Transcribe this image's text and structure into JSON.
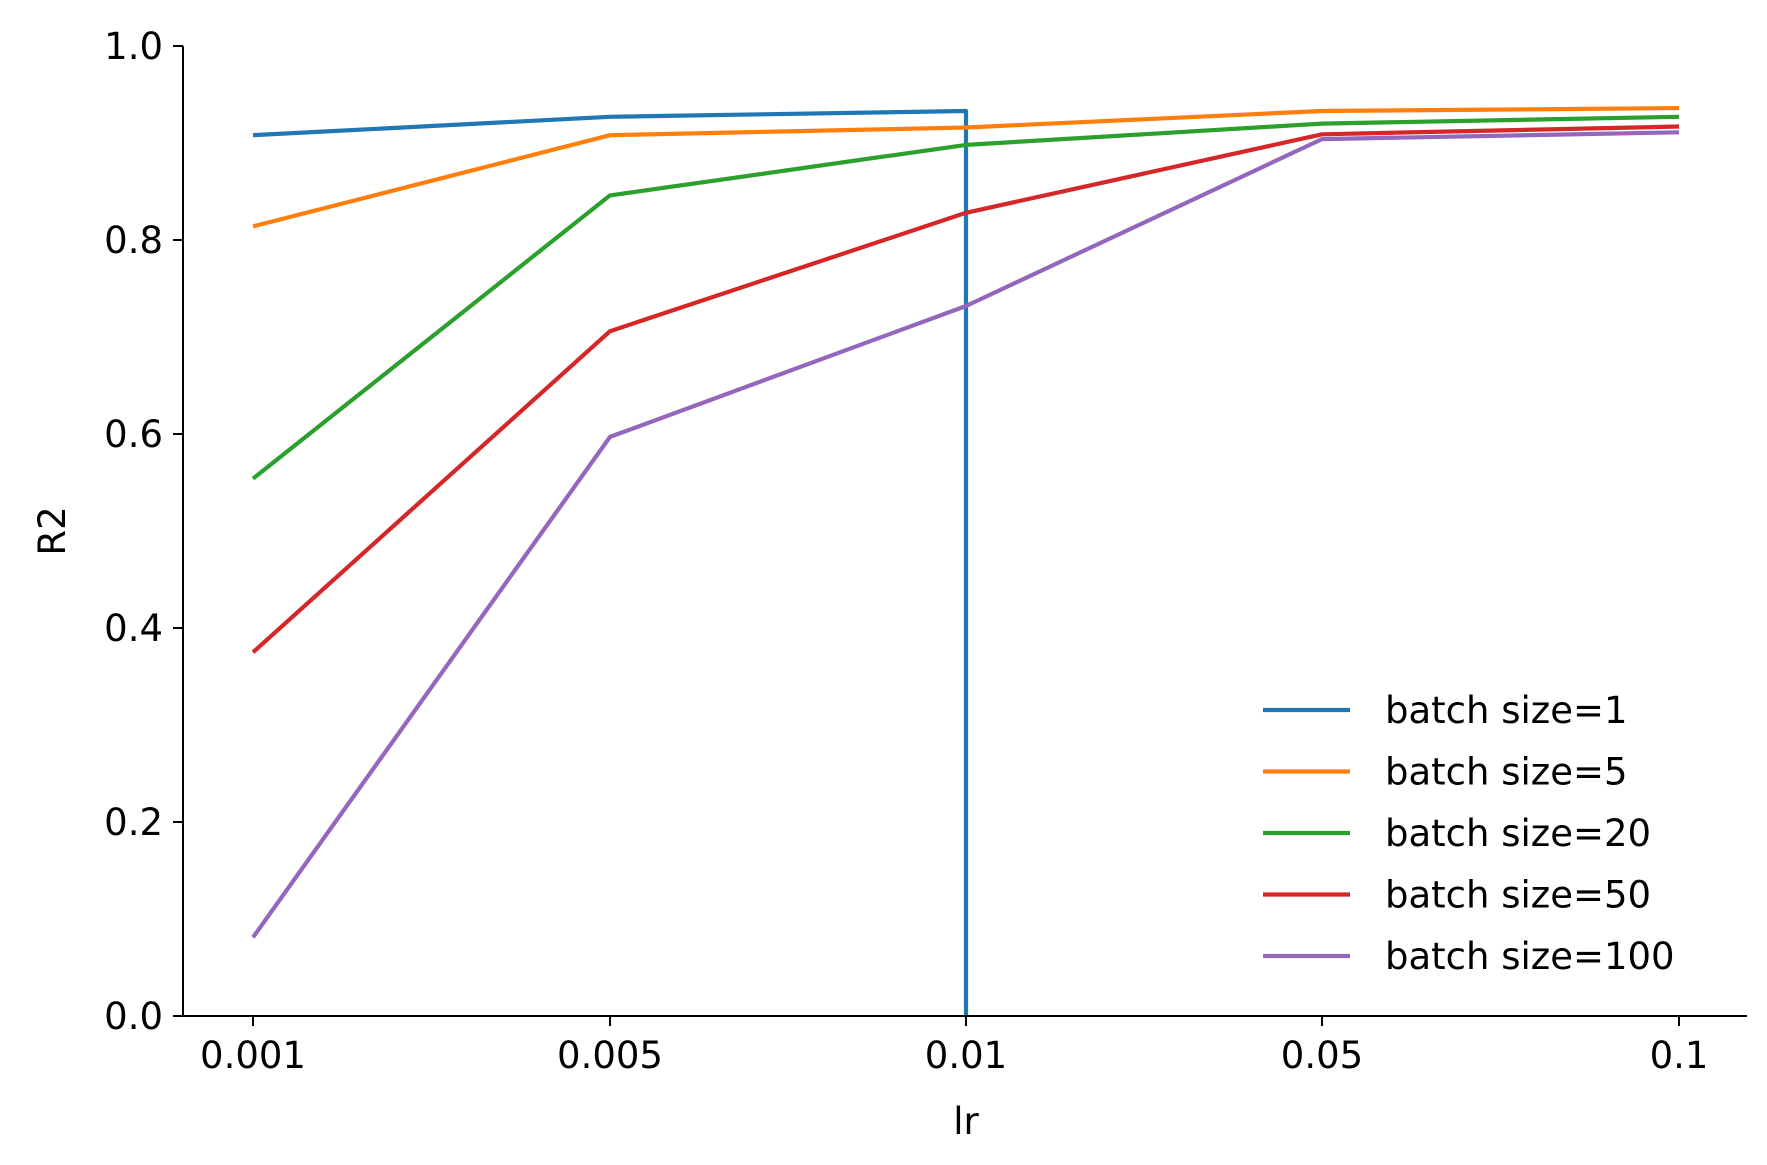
{
  "chart_data": {
    "type": "line",
    "title": "",
    "xlabel": "lr",
    "ylabel": "R2",
    "categories": [
      "0.001",
      "0.005",
      "0.01",
      "0.05",
      "0.1"
    ],
    "ylim": [
      0.0,
      1.0
    ],
    "yticks": [
      "0.0",
      "0.2",
      "0.4",
      "0.6",
      "0.8",
      "1.0"
    ],
    "grid": false,
    "legend_position": "bottom-right",
    "series": [
      {
        "name": "batch size=1",
        "color": "#1f77b4",
        "values": [
          0.908,
          0.927,
          0.933,
          null,
          null
        ],
        "drop_to": 0.0
      },
      {
        "name": "batch size=5",
        "color": "#ff7f0e",
        "values": [
          0.814,
          0.908,
          0.916,
          0.933,
          0.936
        ]
      },
      {
        "name": "batch size=20",
        "color": "#2ca02c",
        "values": [
          0.554,
          0.846,
          0.898,
          0.92,
          0.927
        ]
      },
      {
        "name": "batch size=50",
        "color": "#d62728",
        "values": [
          0.375,
          0.706,
          0.828,
          0.909,
          0.917
        ]
      },
      {
        "name": "batch size=100",
        "color": "#9467bd",
        "values": [
          0.081,
          0.597,
          0.732,
          0.904,
          0.911
        ]
      }
    ]
  }
}
